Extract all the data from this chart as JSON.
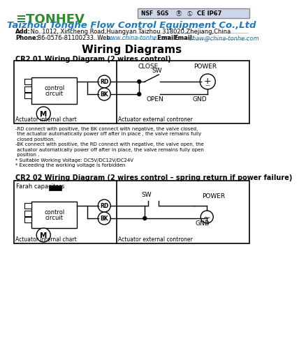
{
  "bg_color": "#ffffff",
  "logo_color": "#2e8b2e",
  "title_color": "#1a8faf",
  "company_name": "Taizhou Tonghe Flow Control Equipment Co.,Ltd",
  "add_label": "Add:",
  "add_text": " No. 1012, Xincheng Road,Huangyan Taizhou 318020,Zhejiang,China",
  "phone_label": "Phone:",
  "phone_rest": " 86-0576-81100233. Web: ",
  "web_text": "www.china-tonhe.com",
  "email_label": ". Email: ",
  "email_text": "shaw@china-tonhe.com",
  "email_end": ".",
  "main_title": "Wiring Diagrams",
  "cr2_01_title": "CR2 01 Wiring Diagram (2 wires control)",
  "cr2_01_notes": [
    "-RD connect with positive, the BK connect with negative, the valve closed,",
    " the actuator automatically power off after in place , the valve remains fully",
    " closed position.",
    "-BK connect with positive, the RD connect with negative, the valve open, the",
    " actuator automatically power off after in place, the valve remains fully open",
    " position .",
    "* Suitable Working Voltage: DC5V/DC12V/DC24V",
    "* Exceeding the working voltage is forbidden"
  ],
  "cr2_02_title": "CR2 02 Wiring Diagram (2 wires control – spring return if power failure)"
}
